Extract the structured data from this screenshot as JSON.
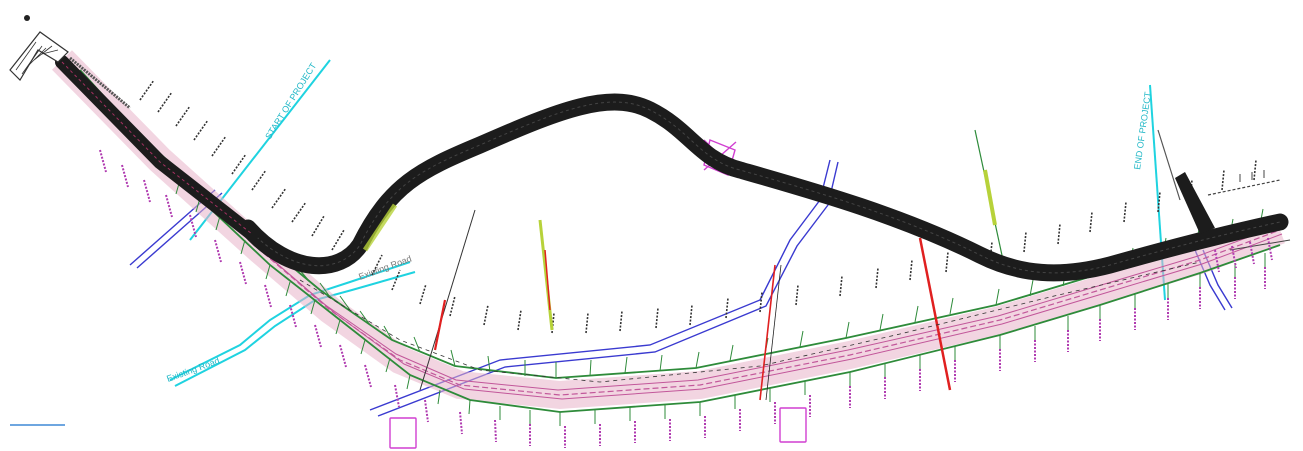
{
  "labels": {
    "start": "START OF PROJECT",
    "end": "END OF PROJECT",
    "existing_road_1": "Existing Road",
    "existing_road_2": "Existing Road"
  },
  "colors": {
    "bypass": "#1c1c1c",
    "corridor_green": "#2e8b3a",
    "corridor_pink": "#c2579a",
    "station_magenta": "#b03bb0",
    "cyan": "#1fd3e0",
    "blue": "#3a3ad0",
    "red": "#e02020",
    "yellow_green": "#b7d23a"
  }
}
